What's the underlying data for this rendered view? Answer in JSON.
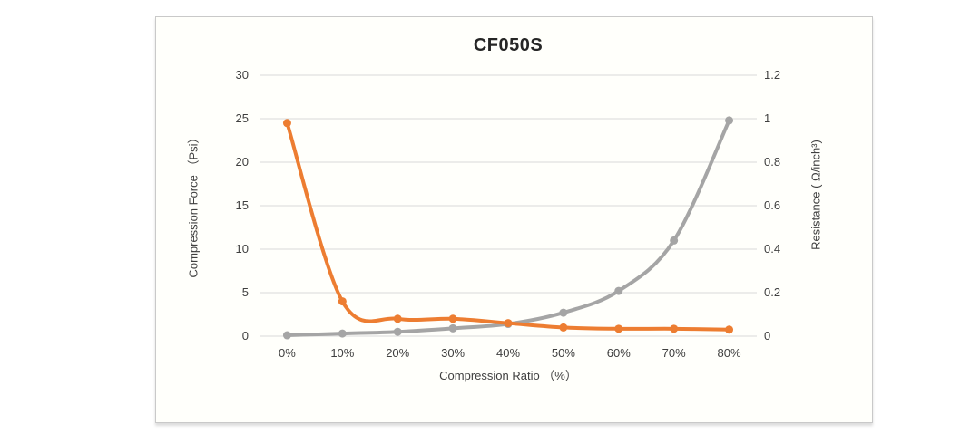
{
  "chart_data": {
    "type": "line",
    "title": "CF050S",
    "categories": [
      "0%",
      "10%",
      "20%",
      "30%",
      "40%",
      "50%",
      "60%",
      "70%",
      "80%"
    ],
    "xlabel": "Compression Ratio （%）",
    "axes": {
      "left": {
        "label": "Compression Force （Psi）",
        "min": 0,
        "max": 30,
        "ticks": [
          "0",
          "5",
          "10",
          "15",
          "20",
          "25",
          "30"
        ]
      },
      "right": {
        "label": "Resistance ( Ω/inch³)",
        "min": 0,
        "max": 1.2,
        "ticks": [
          "0",
          "0.2",
          "0.4",
          "0.6",
          "0.8",
          "1",
          "1.2"
        ]
      }
    },
    "series": [
      {
        "id": "compression-force",
        "name": "Compression Force (Psi)",
        "axis": "left",
        "color": "#a5a5a5",
        "values": [
          0.1,
          0.3,
          0.5,
          0.9,
          1.4,
          2.7,
          5.2,
          11,
          24.8
        ]
      },
      {
        "id": "resistance",
        "name": "Resistance (Ω/inch³)",
        "axis": "right",
        "color": "#ed7d31",
        "values": [
          0.98,
          0.16,
          0.08,
          0.08,
          0.06,
          0.04,
          0.034,
          0.034,
          0.03
        ]
      }
    ],
    "grid": true,
    "grid_color": "#d9d9d9",
    "legend": "none"
  }
}
